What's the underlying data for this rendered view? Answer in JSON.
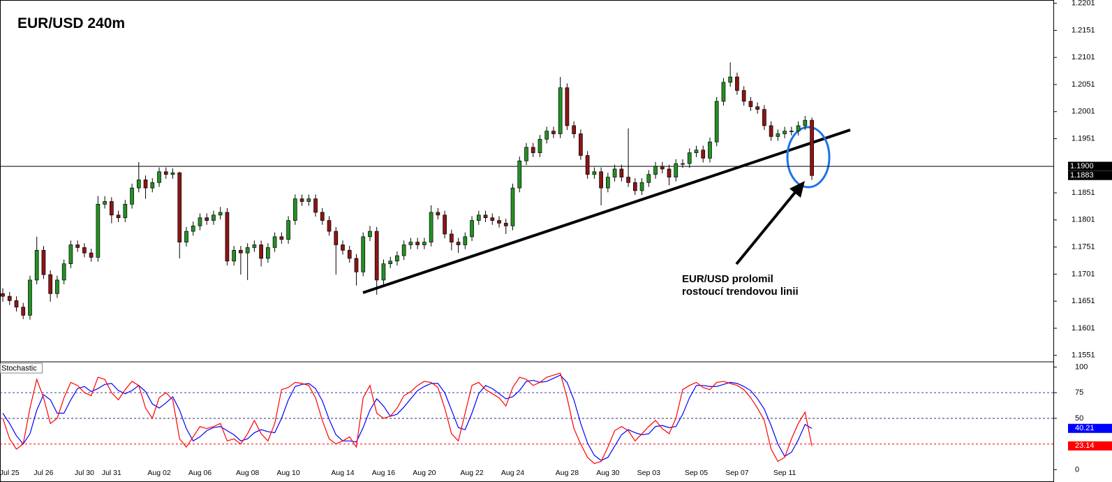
{
  "chart_data": [
    {
      "type": "candlestick",
      "title": "EUR/USD 240m",
      "categories": [
        null,
        "Jul 25",
        null,
        null,
        null,
        null,
        "Jul 26",
        null,
        null,
        null,
        null,
        null,
        "Jul 30",
        null,
        null,
        null,
        "Jul 31",
        null,
        null,
        null,
        null,
        null,
        null,
        "Aug 02",
        null,
        null,
        null,
        null,
        null,
        "Aug 06",
        null,
        null,
        null,
        null,
        null,
        null,
        "Aug 08",
        null,
        null,
        null,
        null,
        null,
        "Aug 10",
        null,
        null,
        null,
        null,
        null,
        null,
        null,
        "Aug 14",
        null,
        null,
        null,
        null,
        null,
        "Aug 16",
        null,
        null,
        null,
        null,
        null,
        "Aug 20",
        null,
        null,
        null,
        null,
        null,
        null,
        "Aug 22",
        null,
        null,
        null,
        null,
        null,
        "Aug 24",
        null,
        null,
        null,
        null,
        null,
        null,
        null,
        "Aug 28",
        null,
        null,
        null,
        null,
        null,
        "Aug 30",
        null,
        null,
        null,
        null,
        null,
        "Sep 03",
        null,
        null,
        null,
        null,
        null,
        null,
        "Sep 05",
        null,
        null,
        null,
        null,
        null,
        "Sep 07",
        null,
        null,
        null,
        null,
        null,
        null,
        "Sep 11",
        null,
        null,
        null,
        null
      ],
      "open": [
        1.1665,
        1.166,
        1.1652,
        1.164,
        1.1625,
        1.169,
        1.1745,
        1.17,
        1.1665,
        1.169,
        1.172,
        1.1755,
        1.175,
        1.174,
        1.1732,
        1.183,
        1.1835,
        1.181,
        1.1805,
        1.183,
        1.186,
        1.1875,
        1.186,
        1.187,
        1.189,
        1.1885,
        1.1888,
        1.176,
        1.178,
        1.179,
        1.1805,
        1.18,
        1.181,
        1.1815,
        1.1725,
        1.1745,
        1.174,
        1.175,
        1.1755,
        1.173,
        1.175,
        1.177,
        1.1765,
        1.18,
        1.184,
        1.1835,
        1.184,
        1.1815,
        1.18,
        1.178,
        1.1755,
        1.1745,
        1.173,
        1.1705,
        1.177,
        1.178,
        1.169,
        1.172,
        1.1725,
        1.1735,
        1.1755,
        1.176,
        1.1755,
        1.176,
        1.1815,
        1.181,
        1.1775,
        1.176,
        1.1755,
        1.177,
        1.18,
        1.181,
        1.1805,
        1.18,
        1.1795,
        1.179,
        1.186,
        1.191,
        1.1935,
        1.1925,
        1.195,
        1.1965,
        1.196,
        1.2045,
        1.1975,
        1.196,
        1.192,
        1.1885,
        1.189,
        1.186,
        1.188,
        1.1895,
        1.188,
        1.187,
        1.1855,
        1.187,
        1.1885,
        1.19,
        1.1895,
        1.188,
        1.1905,
        1.1905,
        1.1925,
        1.193,
        1.1915,
        1.1945,
        1.202,
        1.2055,
        1.2065,
        1.204,
        1.202,
        1.201,
        1.2005,
        1.1975,
        1.1955,
        1.196,
        1.1965,
        1.1965,
        1.1975,
        1.1985
      ],
      "high": [
        1.1675,
        1.1668,
        1.166,
        1.1648,
        1.1698,
        1.177,
        1.1753,
        1.1708,
        1.1698,
        1.1728,
        1.1763,
        1.1763,
        1.1758,
        1.1748,
        1.1845,
        1.1845,
        1.1843,
        1.1818,
        1.1838,
        1.1868,
        1.1908,
        1.1883,
        1.1878,
        1.1898,
        1.1898,
        1.1896,
        1.189,
        1.1788,
        1.1798,
        1.1813,
        1.1813,
        1.1818,
        1.1825,
        1.1823,
        1.1753,
        1.1753,
        1.1758,
        1.1763,
        1.1763,
        1.1758,
        1.1778,
        1.1778,
        1.1808,
        1.1848,
        1.1848,
        1.1848,
        1.1848,
        1.1823,
        1.1808,
        1.1788,
        1.1763,
        1.1753,
        1.1738,
        1.1778,
        1.179,
        1.1788,
        1.1728,
        1.1733,
        1.1743,
        1.1763,
        1.1768,
        1.1768,
        1.1768,
        1.1828,
        1.1823,
        1.1818,
        1.1783,
        1.1768,
        1.1778,
        1.1808,
        1.1818,
        1.1818,
        1.1813,
        1.1808,
        1.1803,
        1.1868,
        1.1918,
        1.1943,
        1.1943,
        1.1958,
        1.1973,
        1.1973,
        1.2065,
        1.2053,
        1.1983,
        1.1968,
        1.1928,
        1.1898,
        1.1898,
        1.1888,
        1.1903,
        1.1903,
        1.197,
        1.1878,
        1.1878,
        1.1893,
        1.1908,
        1.1908,
        1.1903,
        1.1913,
        1.1913,
        1.1933,
        1.1938,
        1.1938,
        1.1953,
        1.2028,
        1.2063,
        1.2092,
        1.2073,
        1.2048,
        1.2028,
        1.2018,
        1.2013,
        1.1983,
        1.1968,
        1.1973,
        1.1973,
        1.1983,
        1.1993,
        1.199
      ],
      "low": [
        1.165,
        1.1644,
        1.1632,
        1.1618,
        1.1617,
        1.1682,
        1.1692,
        1.165,
        1.1657,
        1.1682,
        1.1712,
        1.1742,
        1.1732,
        1.1724,
        1.1724,
        1.1822,
        1.1795,
        1.1797,
        1.1797,
        1.1822,
        1.1852,
        1.184,
        1.1852,
        1.1862,
        1.1877,
        1.1877,
        1.173,
        1.1752,
        1.1772,
        1.1782,
        1.1792,
        1.1792,
        1.1802,
        1.1717,
        1.1717,
        1.17,
        1.169,
        1.1742,
        1.1715,
        1.1722,
        1.1742,
        1.1757,
        1.1757,
        1.1792,
        1.1827,
        1.1827,
        1.1807,
        1.1792,
        1.1772,
        1.17,
        1.1737,
        1.1722,
        1.168,
        1.1697,
        1.1762,
        1.1663,
        1.1682,
        1.1712,
        1.1717,
        1.1727,
        1.1747,
        1.1747,
        1.1747,
        1.1752,
        1.1802,
        1.1767,
        1.1745,
        1.174,
        1.1747,
        1.1762,
        1.1792,
        1.1797,
        1.1792,
        1.1787,
        1.1775,
        1.1782,
        1.1852,
        1.1902,
        1.1917,
        1.1917,
        1.1942,
        1.1952,
        1.1952,
        1.1967,
        1.1952,
        1.1912,
        1.1877,
        1.1877,
        1.1828,
        1.1852,
        1.1872,
        1.1872,
        1.1862,
        1.1847,
        1.1847,
        1.1862,
        1.1877,
        1.1887,
        1.1865,
        1.1872,
        1.1897,
        1.1897,
        1.1917,
        1.1907,
        1.1907,
        1.1937,
        1.2012,
        1.2047,
        1.2032,
        1.2012,
        1.2002,
        1.1997,
        1.1967,
        1.1947,
        1.1947,
        1.1952,
        1.1957,
        1.1957,
        1.1967,
        1.1875
      ],
      "close": [
        1.166,
        1.1652,
        1.164,
        1.1625,
        1.169,
        1.1745,
        1.17,
        1.1665,
        1.169,
        1.172,
        1.1755,
        1.175,
        1.174,
        1.1732,
        1.183,
        1.1835,
        1.181,
        1.1805,
        1.183,
        1.186,
        1.1875,
        1.186,
        1.187,
        1.189,
        1.1885,
        1.1888,
        1.176,
        1.178,
        1.179,
        1.1805,
        1.18,
        1.181,
        1.1815,
        1.1725,
        1.1745,
        1.174,
        1.175,
        1.1755,
        1.173,
        1.175,
        1.177,
        1.1765,
        1.18,
        1.184,
        1.1835,
        1.184,
        1.1815,
        1.18,
        1.178,
        1.1755,
        1.1745,
        1.173,
        1.1705,
        1.177,
        1.178,
        1.169,
        1.172,
        1.1725,
        1.1735,
        1.1755,
        1.176,
        1.1755,
        1.176,
        1.1815,
        1.181,
        1.1775,
        1.176,
        1.1755,
        1.177,
        1.18,
        1.181,
        1.1805,
        1.18,
        1.1795,
        1.179,
        1.186,
        1.191,
        1.1935,
        1.1925,
        1.195,
        1.1965,
        1.196,
        1.2045,
        1.1975,
        1.196,
        1.192,
        1.1885,
        1.189,
        1.186,
        1.188,
        1.1895,
        1.188,
        1.187,
        1.1855,
        1.187,
        1.1885,
        1.19,
        1.1895,
        1.188,
        1.1905,
        1.1905,
        1.1925,
        1.193,
        1.1915,
        1.1945,
        1.202,
        1.2055,
        1.2065,
        1.204,
        1.202,
        1.201,
        1.2005,
        1.1975,
        1.1955,
        1.196,
        1.1965,
        1.1965,
        1.1975,
        1.1985,
        1.1883
      ],
      "up_color": "#239123",
      "down_color": "#8e1414",
      "ylim": [
        1.1539,
        1.2207
      ],
      "yticks": [
        1.2201,
        1.2151,
        1.2101,
        1.2051,
        1.2001,
        1.1951,
        1.1851,
        1.1801,
        1.1751,
        1.1701,
        1.1651,
        1.1601,
        1.1551
      ],
      "hline": {
        "value": 1.19,
        "label": "1.1900"
      },
      "annotation": [
        "EUR/USD prolomil",
        "rostoucí trendovou linii"
      ]
    },
    {
      "type": "line",
      "title": "Stochastic",
      "series": [
        {
          "color": "#0000ff",
          "values": [
            55,
            45,
            33,
            25,
            35,
            58,
            73,
            68,
            55,
            55,
            68,
            79,
            81,
            76,
            79,
            83,
            84,
            77,
            74,
            77,
            82,
            76,
            64,
            60,
            65,
            71,
            58,
            40,
            28,
            32,
            38,
            41,
            42,
            38,
            34,
            28,
            30,
            36,
            39,
            37,
            36,
            50,
            68,
            81,
            83,
            84,
            79,
            67,
            49,
            34,
            28,
            28,
            27,
            41,
            58,
            69,
            62,
            52,
            54,
            61,
            69,
            77,
            81,
            84,
            84,
            75,
            58,
            41,
            39,
            55,
            74,
            82,
            79,
            74,
            69,
            71,
            77,
            86,
            87,
            85,
            86,
            89,
            92,
            85,
            68,
            45,
            26,
            14,
            9,
            12,
            23,
            34,
            39,
            36,
            34,
            35,
            42,
            43,
            41,
            42,
            54,
            70,
            82,
            82,
            81,
            81,
            83,
            85,
            84,
            81,
            77,
            69,
            59,
            43,
            25,
            13,
            17,
            29,
            44,
            40.21
          ]
        },
        {
          "color": "#ff0000",
          "values": [
            50,
            30,
            20,
            25,
            60,
            88,
            70,
            45,
            50,
            70,
            85,
            82,
            75,
            72,
            90,
            88,
            75,
            68,
            78,
            86,
            82,
            60,
            50,
            70,
            75,
            68,
            30,
            22,
            32,
            42,
            40,
            42,
            45,
            28,
            30,
            25,
            35,
            48,
            35,
            28,
            45,
            78,
            80,
            85,
            84,
            82,
            70,
            48,
            30,
            25,
            28,
            32,
            22,
            70,
            82,
            55,
            50,
            52,
            60,
            72,
            76,
            82,
            86,
            85,
            80,
            60,
            35,
            28,
            55,
            82,
            85,
            78,
            74,
            70,
            62,
            80,
            90,
            88,
            82,
            85,
            90,
            92,
            94,
            70,
            40,
            25,
            12,
            6,
            8,
            22,
            38,
            42,
            38,
            28,
            35,
            42,
            48,
            40,
            35,
            50,
            78,
            82,
            85,
            80,
            78,
            85,
            86,
            84,
            82,
            78,
            70,
            60,
            48,
            20,
            8,
            12,
            30,
            45,
            56,
            23.14
          ]
        }
      ],
      "ylim": [
        -12,
        105
      ],
      "yticks": [
        100,
        75,
        50,
        0
      ],
      "levels": [
        {
          "value": 75,
          "color": "#3a3aa8"
        },
        {
          "value": 50,
          "color": "#2a2a7a"
        },
        {
          "value": 25,
          "color": "#ff0000"
        }
      ]
    }
  ]
}
